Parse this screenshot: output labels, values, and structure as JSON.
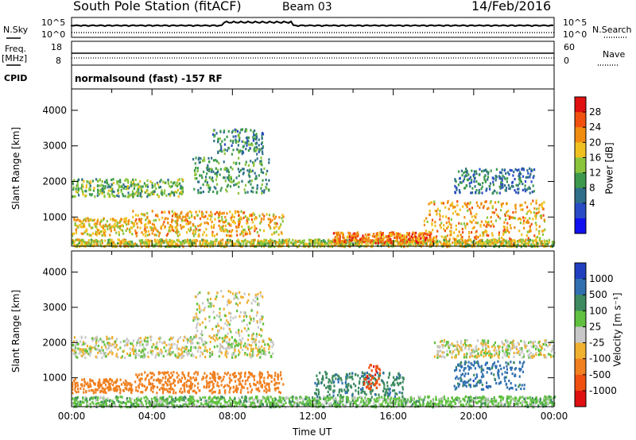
{
  "header": {
    "station": "South Pole Station (fitACF)",
    "beam": "Beam 03",
    "date": "14/Feb/2016"
  },
  "params": {
    "nsky_label": "N.Sky",
    "nsearch_label": "N.Search",
    "freq_label": "Freq.",
    "freq_unit": "[MHz]",
    "nave_label": "Nave",
    "cpid_label": "CPID",
    "cpid_value": "normalsound (fast) -157 RF",
    "noise_ticks": [
      "10^5",
      "10^0"
    ],
    "freq_ticks": [
      "18",
      "8"
    ],
    "nave_ticks": [
      "60",
      "0"
    ]
  },
  "panels": {
    "power": {
      "ylabel": "Slant Range [km]",
      "yticks": [
        "4000",
        "3000",
        "2000",
        "1000"
      ],
      "cbar_label": "Power [dB]",
      "cbar_ticks": [
        "28",
        "24",
        "20",
        "16",
        "12",
        "8",
        "4"
      ],
      "cbar_colors": [
        "#e01010",
        "#f05010",
        "#f08c10",
        "#f0c020",
        "#8ac43c",
        "#3d9a4c",
        "#2f6f8a",
        "#2a4cc4",
        "#1010f0"
      ]
    },
    "velocity": {
      "ylabel": "Slant Range [km]",
      "yticks": [
        "4000",
        "3000",
        "2000",
        "1000"
      ],
      "cbar_label": "Velocity [m s⁻¹]",
      "cbar_ticks": [
        "1000",
        "500",
        "100",
        "25",
        "-25",
        "-100",
        "-500",
        "-1000"
      ],
      "cbar_colors": [
        "#2040c0",
        "#3070b0",
        "#3d8a60",
        "#60c040",
        "#c8c8c8",
        "#f0b030",
        "#f08020",
        "#f05010",
        "#e01010"
      ]
    }
  },
  "xaxis": {
    "label": "Time UT",
    "ticks": [
      "00:00",
      "04:00",
      "08:00",
      "12:00",
      "16:00",
      "20:00",
      "00:00"
    ]
  },
  "chart_data": [
    {
      "type": "heatmap",
      "name": "power",
      "xlabel": "Time UT",
      "ylabel": "Slant Range [km]",
      "xlim": [
        0,
        24
      ],
      "ylim": [
        180,
        4600
      ],
      "color_scale": "Power [dB]",
      "clim": [
        0,
        32
      ],
      "features": [
        {
          "t": [
            0.0,
            24.0
          ],
          "range": [
            200,
            400
          ],
          "value_db": 18
        },
        {
          "t": [
            0.0,
            5.5
          ],
          "range": [
            1600,
            2100
          ],
          "value_db": 14
        },
        {
          "t": [
            0.0,
            3.0
          ],
          "range": [
            500,
            1000
          ],
          "value_db": 20
        },
        {
          "t": [
            3.0,
            10.5
          ],
          "range": [
            500,
            1200
          ],
          "value_db": 22
        },
        {
          "t": [
            6.0,
            9.8
          ],
          "range": [
            1700,
            2700
          ],
          "value_db": 12
        },
        {
          "t": [
            7.0,
            9.5
          ],
          "range": [
            2800,
            3500
          ],
          "value_db": 10
        },
        {
          "t": [
            13.0,
            18.0
          ],
          "range": [
            300,
            600
          ],
          "value_db": 26
        },
        {
          "t": [
            17.5,
            23.5
          ],
          "range": [
            400,
            1500
          ],
          "value_db": 22
        },
        {
          "t": [
            19.0,
            23.0
          ],
          "range": [
            1700,
            2400
          ],
          "value_db": 8
        }
      ]
    },
    {
      "type": "heatmap",
      "name": "velocity",
      "xlabel": "Time UT",
      "ylabel": "Slant Range [km]",
      "xlim": [
        0,
        24
      ],
      "ylim": [
        180,
        4600
      ],
      "color_scale": "Velocity [m s^-1]",
      "clim": [
        -1000,
        1000
      ],
      "features": [
        {
          "t": [
            0.0,
            10.0
          ],
          "range": [
            1600,
            2200
          ],
          "value_ms": 0
        },
        {
          "t": [
            0.0,
            3.0
          ],
          "range": [
            600,
            1000
          ],
          "value_ms": -200
        },
        {
          "t": [
            3.0,
            10.5
          ],
          "range": [
            600,
            1200
          ],
          "value_ms": -300
        },
        {
          "t": [
            0.0,
            24.0
          ],
          "range": [
            200,
            500
          ],
          "value_ms": 60
        },
        {
          "t": [
            6.0,
            9.5
          ],
          "range": [
            2200,
            3500
          ],
          "value_ms": 0
        },
        {
          "t": [
            12.0,
            16.5
          ],
          "range": [
            500,
            1200
          ],
          "value_ms": 400
        },
        {
          "t": [
            14.5,
            15.3
          ],
          "range": [
            700,
            1400
          ],
          "value_ms": -800
        },
        {
          "t": [
            19.0,
            22.5
          ],
          "range": [
            700,
            1500
          ],
          "value_ms": 700
        },
        {
          "t": [
            18.0,
            24.0
          ],
          "range": [
            1600,
            2100
          ],
          "value_ms": 0
        }
      ]
    }
  ]
}
